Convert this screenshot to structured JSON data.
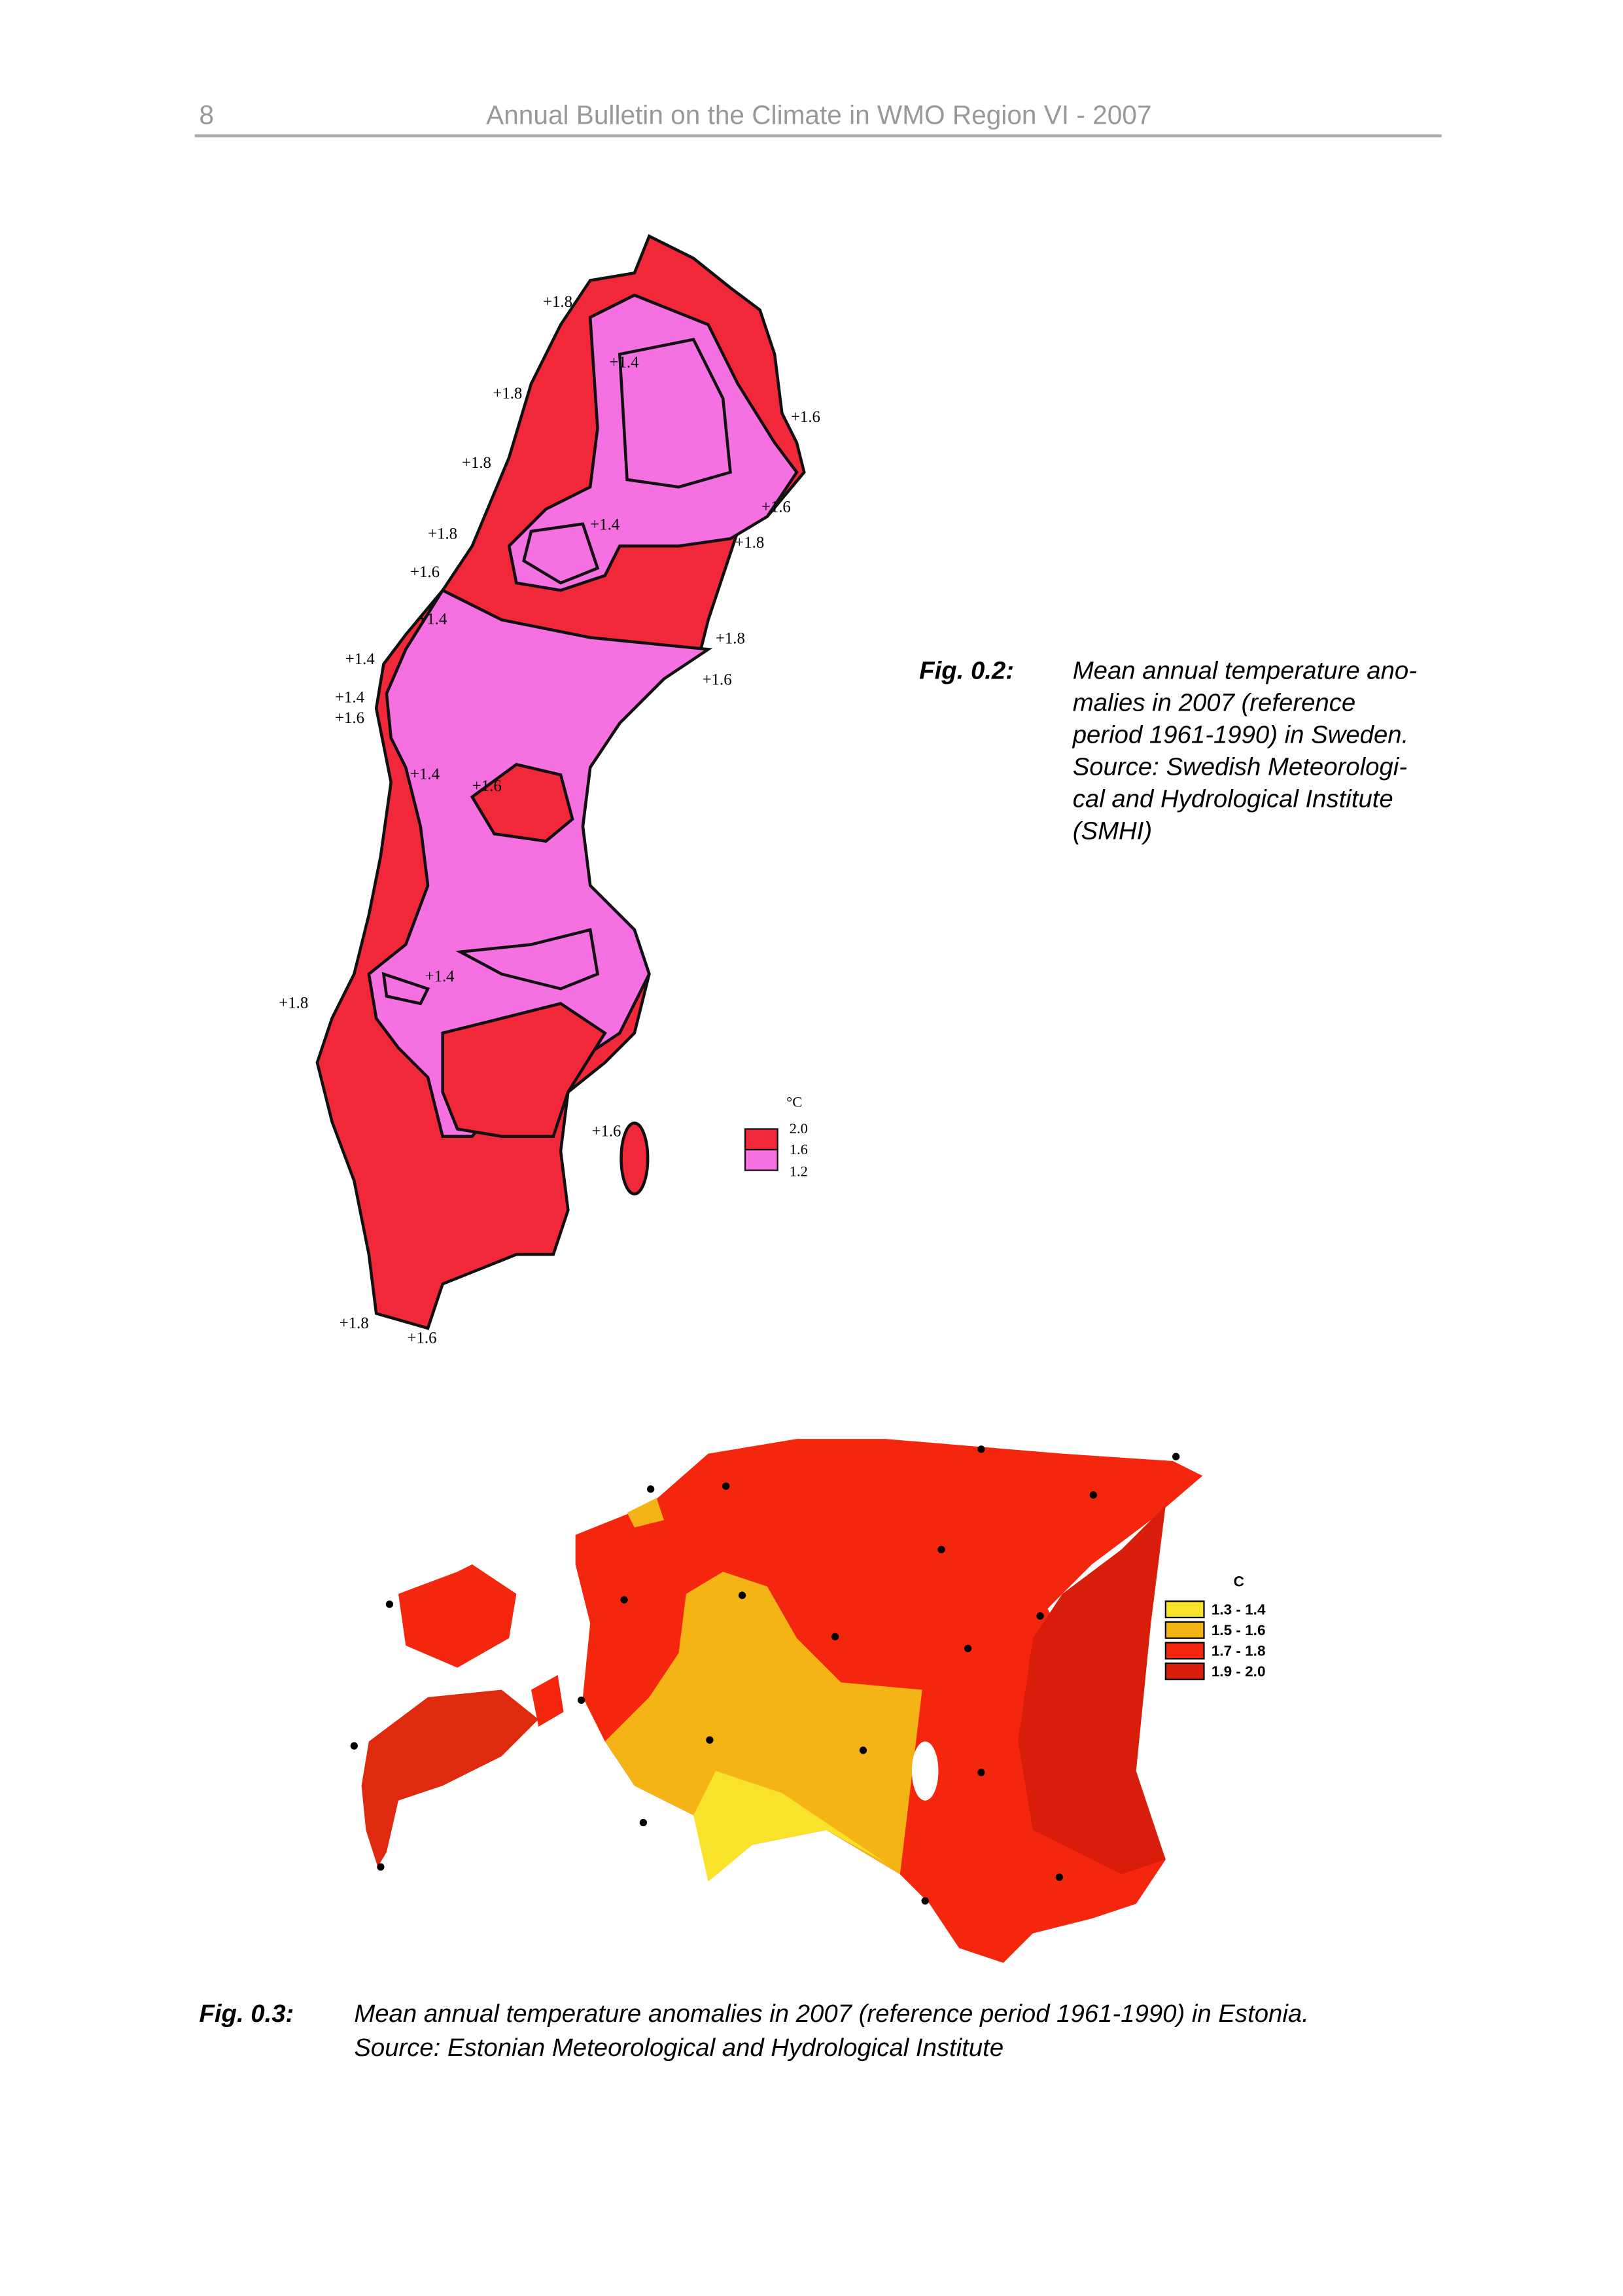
{
  "header": {
    "page_number": "8",
    "title": "Annual Bulletin on the Climate in WMO Region VI - 2007"
  },
  "figures": [
    {
      "label": "Fig. 0.2:",
      "caption_lines": [
        "Mean annual temperature ano-",
        "malies in 2007 (reference",
        "period 1961-1990) in Sweden.",
        "Source: Swedish Meteorologi-",
        "cal and Hydrological Institute",
        "(SMHI)"
      ],
      "contour_labels": [
        "+1.8",
        "+1.4",
        "+1.8",
        "+1.6",
        "+1.8",
        "+1.4",
        "+1.6",
        "+1.8",
        "+1.8",
        "+1.6",
        "+1.4",
        "+1.8",
        "+1.4",
        "+1.6",
        "+1.4",
        "+1.6",
        "+1.4",
        "+1.6",
        "+1.4",
        "+1.8",
        "+1.6",
        "+1.8",
        "+1.6"
      ],
      "legend": {
        "unit": "°C",
        "labels": [
          "2.0",
          "1.6",
          "1.2"
        ]
      }
    },
    {
      "label": "Fig. 0.3:",
      "caption_lines": [
        "Mean annual temperature anomalies in 2007 (reference period 1961-1990) in Estonia.",
        "Source: Estonian Meteorological and Hydrological Institute"
      ],
      "legend": {
        "unit": "C",
        "labels": [
          "1.3 - 1.4",
          "1.5 - 1.6",
          "1.7 - 1.8",
          "1.9 - 2.0"
        ]
      }
    }
  ]
}
